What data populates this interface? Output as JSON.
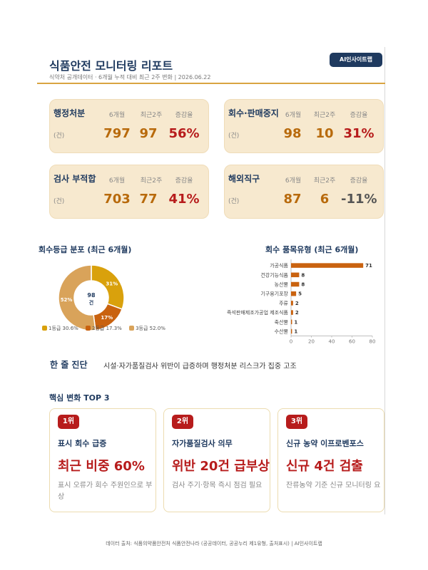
{
  "header": {
    "title": "식품안전 모니터링 리포트",
    "subtitle": "식약처 공개데이터 · 6개월 누적 대비 최근 2주 변화 | 2026.06.22",
    "badge": "AI인사이트랩"
  },
  "kpis": [
    {
      "title": "행정처분",
      "h1": "6개월",
      "h2": "최근2주",
      "h3": "증감율",
      "unit": "(건)",
      "v6m": "797",
      "v2w": "97",
      "rate": "56%",
      "rate_color": "#b71c1c"
    },
    {
      "title": "회수·판매중지",
      "h1": "6개월",
      "h2": "최근2주",
      "h3": "증감율",
      "unit": "(건)",
      "v6m": "98",
      "v2w": "10",
      "rate": "31%",
      "rate_color": "#b71c1c"
    },
    {
      "title": "검사 부적합",
      "h1": "6개월",
      "h2": "최근2주",
      "h3": "증감율",
      "unit": "(건)",
      "v6m": "703",
      "v2w": "77",
      "rate": "41%",
      "rate_color": "#b71c1c"
    },
    {
      "title": "해외직구",
      "h1": "6개월",
      "h2": "최근2주",
      "h3": "증감율",
      "unit": "(건)",
      "v6m": "87",
      "v2w": "6",
      "rate": "-11%",
      "rate_color": "#555555"
    }
  ],
  "sections": {
    "donut_title": "회수등급 분포 (최근 6개월)",
    "bar_title": "회수 품목유형 (최근 6개월)",
    "diag_label": "한 줄 진단",
    "diag_text": "시설·자가품질검사 위반이 급증하며 행정처분 리스크가 집중 고조",
    "top3_title": "핵심 변화 TOP 3"
  },
  "chart_data": [
    {
      "type": "pie",
      "title": "회수등급 분포 (최근 6개월)",
      "center_value": "98",
      "center_unit": "건",
      "slices": [
        {
          "name": "1등급",
          "value": 30.6,
          "label": "31%",
          "legend": "1등급 30.6%",
          "color": "#d9a10c"
        },
        {
          "name": "2등급",
          "value": 17.3,
          "label": "17%",
          "legend": "2등급 17.3%",
          "color": "#c9620f"
        },
        {
          "name": "3등급",
          "value": 52.0,
          "label": "52%",
          "legend": "3등급 52.0%",
          "color": "#d9a35a"
        }
      ]
    },
    {
      "type": "bar",
      "orientation": "horizontal",
      "title": "회수 품목유형 (최근 6개월)",
      "categories": [
        "가공식품",
        "건강기능식품",
        "농산물",
        "기구용기포장",
        "주류",
        "즉석판매제조가공업 제조식품",
        "축산물",
        "수산물"
      ],
      "values": [
        71,
        8,
        8,
        5,
        2,
        2,
        1,
        1
      ],
      "xlim": [
        0,
        80
      ],
      "xticks": [
        0,
        20,
        40,
        60,
        80
      ],
      "color": "#c9620f"
    }
  ],
  "cards": [
    {
      "rank": "1위",
      "title": "표시 회수 급증",
      "big": "최근 비중 60%",
      "desc": "표시 오류가 회수 주원인으로 부상"
    },
    {
      "rank": "2위",
      "title": "자가품질검사 의무",
      "big": "위반 20건 급부상",
      "desc": "검사 주기·항목 즉시 점검 필요"
    },
    {
      "rank": "3위",
      "title": "신규 농약 이프로벤포스",
      "big": "신규 4건 검출",
      "desc": "잔류농약 기준 신규 모니터링 요"
    }
  ],
  "footer": "데이터 출처: 식품의약품안전처 식품안전나라 (공공데이터, 공공누리 제1유형, 출처표시) | AI인사이트랩"
}
